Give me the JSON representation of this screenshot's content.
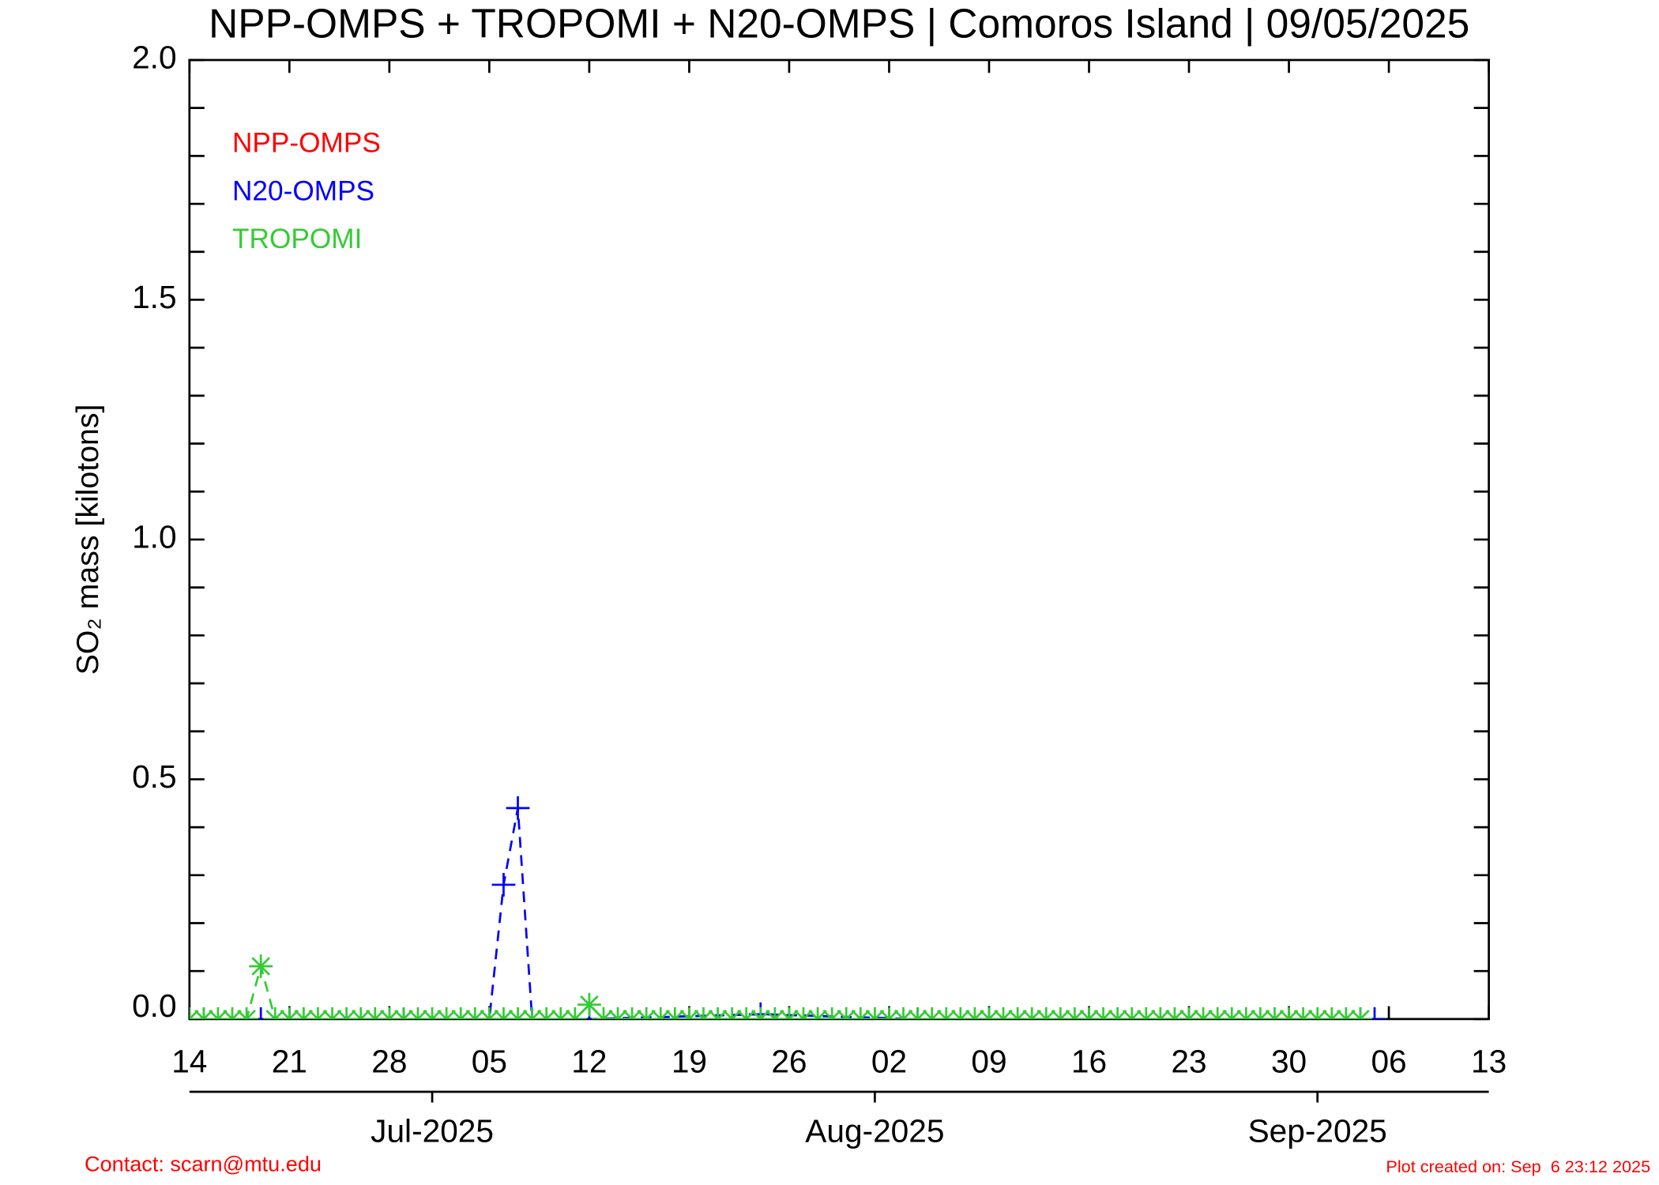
{
  "chart_data": {
    "type": "line",
    "title": "NPP-OMPS + TROPOMI + N20-OMPS | Comoros Island | 09/05/2025",
    "ylabel": "SO₂ mass [kilotons]",
    "ylim": [
      0,
      2.0
    ],
    "yticks": [
      {
        "value": 0,
        "label": "0.0"
      },
      {
        "value": 0.5,
        "label": "0.5"
      },
      {
        "value": 1.0,
        "label": "1.0"
      },
      {
        "value": 1.5,
        "label": "1.5"
      },
      {
        "value": 2.0,
        "label": "2.0"
      }
    ],
    "yminorticks": [
      0.1,
      0.2,
      0.3,
      0.4,
      0.6,
      0.7,
      0.8,
      0.9,
      1.1,
      1.2,
      1.3,
      1.4,
      1.6,
      1.7,
      1.8,
      1.9
    ],
    "xlim": [
      "2025-06-14",
      "2025-09-13"
    ],
    "xticks": [
      {
        "value": "2025-06-14",
        "label": "14"
      },
      {
        "value": "2025-06-21",
        "label": "21"
      },
      {
        "value": "2025-06-28",
        "label": "28"
      },
      {
        "value": "2025-07-05",
        "label": "05"
      },
      {
        "value": "2025-07-12",
        "label": "12"
      },
      {
        "value": "2025-07-19",
        "label": "19"
      },
      {
        "value": "2025-07-26",
        "label": "26"
      },
      {
        "value": "2025-08-02",
        "label": "02"
      },
      {
        "value": "2025-08-09",
        "label": "09"
      },
      {
        "value": "2025-08-16",
        "label": "16"
      },
      {
        "value": "2025-08-23",
        "label": "23"
      },
      {
        "value": "2025-08-30",
        "label": "30"
      },
      {
        "value": "2025-09-06",
        "label": "06"
      },
      {
        "value": "2025-09-13",
        "label": "13"
      }
    ],
    "xmonthticks": [
      {
        "value": "2025-07-01",
        "label": "Jul-2025"
      },
      {
        "value": "2025-08-01",
        "label": "Aug-2025"
      },
      {
        "value": "2025-09-01",
        "label": "Sep-2025"
      }
    ],
    "series": [
      {
        "name": "NPP-OMPS",
        "color": "#ff0000",
        "marker": "plus",
        "linestyle": "dashed",
        "x": [],
        "values": []
      },
      {
        "name": "N20-OMPS",
        "color": "#0000ff",
        "marker": "plus",
        "linestyle": "dashed",
        "x": [
          "2025-06-15",
          "2025-06-19",
          "2025-06-21",
          "2025-06-29",
          "2025-07-05",
          "2025-07-06",
          "2025-07-07",
          "2025-07-08",
          "2025-07-12",
          "2025-07-24",
          "2025-08-04",
          "2025-09-04",
          "2025-09-05"
        ],
        "values": [
          0,
          0,
          0,
          0,
          0,
          0.28,
          0.44,
          0,
          0,
          0.01,
          0,
          0,
          0
        ]
      },
      {
        "name": "TROPOMI",
        "color": "#33cc33",
        "marker": "asterisk",
        "linestyle": "dashed",
        "x": [
          "2025-06-14",
          "2025-06-15",
          "2025-06-16",
          "2025-06-17",
          "2025-06-18",
          "2025-06-19",
          "2025-06-20",
          "2025-06-21",
          "2025-06-22",
          "2025-06-23",
          "2025-06-24",
          "2025-06-25",
          "2025-06-26",
          "2025-06-27",
          "2025-06-28",
          "2025-06-29",
          "2025-06-30",
          "2025-07-01",
          "2025-07-02",
          "2025-07-03",
          "2025-07-04",
          "2025-07-05",
          "2025-07-06",
          "2025-07-07",
          "2025-07-08",
          "2025-07-09",
          "2025-07-10",
          "2025-07-11",
          "2025-07-12",
          "2025-07-13",
          "2025-07-14",
          "2025-07-15",
          "2025-07-16",
          "2025-07-17",
          "2025-07-18",
          "2025-07-19",
          "2025-07-20",
          "2025-07-21",
          "2025-07-22",
          "2025-07-23",
          "2025-07-24",
          "2025-07-25",
          "2025-07-26",
          "2025-07-27",
          "2025-07-28",
          "2025-07-29",
          "2025-07-30",
          "2025-07-31",
          "2025-08-01",
          "2025-08-02",
          "2025-08-03",
          "2025-08-04",
          "2025-08-05",
          "2025-08-06",
          "2025-08-07",
          "2025-08-08",
          "2025-08-09",
          "2025-08-10",
          "2025-08-11",
          "2025-08-12",
          "2025-08-13",
          "2025-08-14",
          "2025-08-15",
          "2025-08-16",
          "2025-08-17",
          "2025-08-18",
          "2025-08-19",
          "2025-08-20",
          "2025-08-21",
          "2025-08-22",
          "2025-08-23",
          "2025-08-24",
          "2025-08-25",
          "2025-08-26",
          "2025-08-27",
          "2025-08-28",
          "2025-08-29",
          "2025-08-30",
          "2025-08-31",
          "2025-09-01",
          "2025-09-02",
          "2025-09-03",
          "2025-09-04"
        ],
        "values": [
          0,
          0,
          0,
          0,
          0,
          0.11,
          0,
          0,
          0,
          0,
          0,
          0,
          0,
          0,
          0,
          0,
          0,
          0,
          0,
          0,
          0,
          0,
          0,
          0,
          0,
          0,
          0,
          0,
          0.03,
          0,
          0,
          0,
          0,
          0,
          0,
          0,
          0,
          0,
          0,
          0,
          0,
          0,
          0,
          0,
          0,
          0,
          0,
          0,
          0,
          0,
          0,
          0,
          0,
          0,
          0,
          0,
          0,
          0,
          0,
          0,
          0,
          0,
          0,
          0,
          0,
          0,
          0,
          0,
          0,
          0,
          0,
          0,
          0,
          0,
          0,
          0,
          0,
          0,
          0,
          0,
          0,
          0,
          0
        ]
      }
    ],
    "footer_left": "Contact: scarn@mtu.edu",
    "footer_right": "Plot created on: Sep  6 23:12 2025"
  }
}
